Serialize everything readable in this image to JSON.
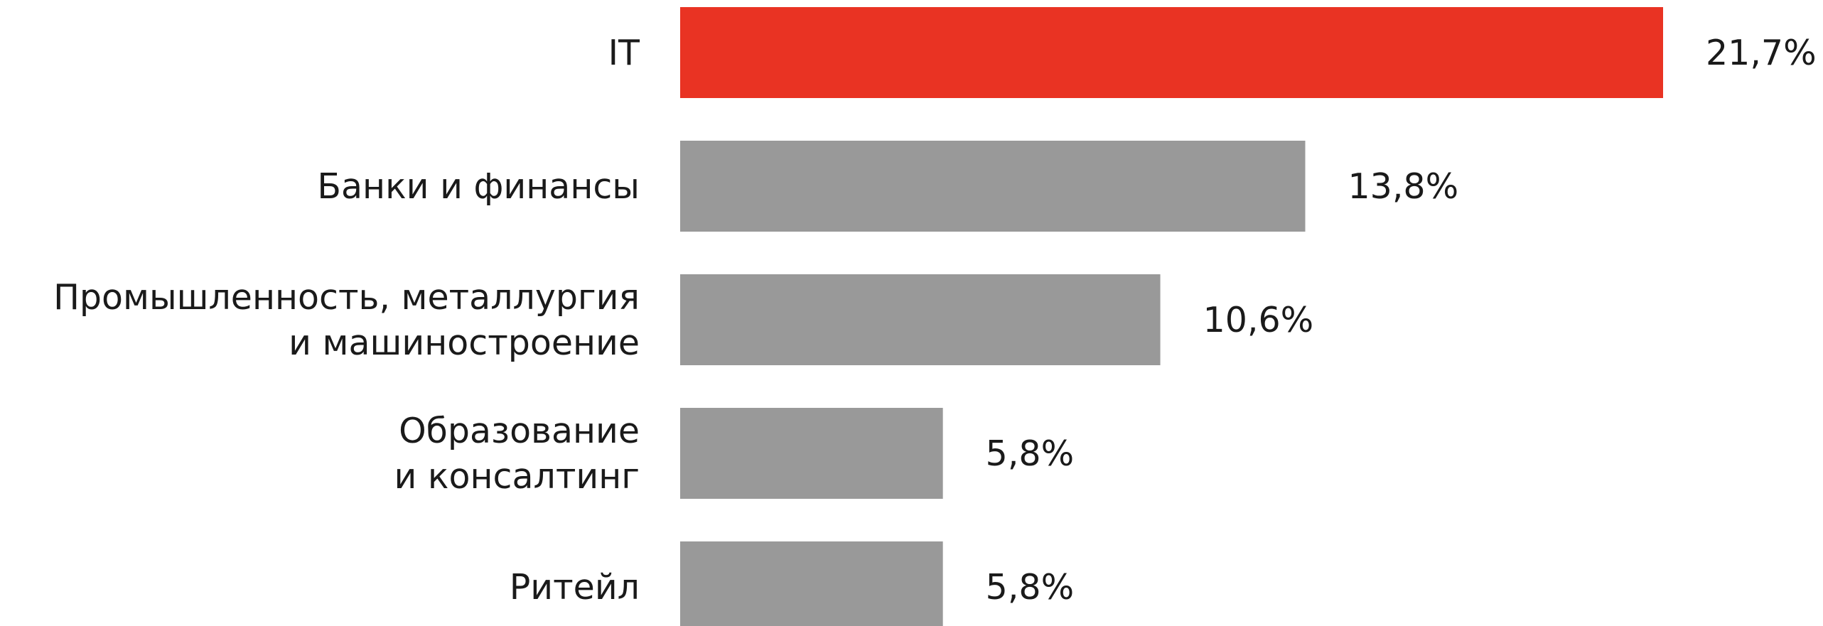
{
  "chart_data": {
    "type": "bar",
    "orientation": "horizontal",
    "categories": [
      [
        "IT"
      ],
      [
        "Банки и финансы"
      ],
      [
        "Промышленность, металлургия",
        "и машиностроение"
      ],
      [
        "Образование",
        "и консалтинг"
      ],
      [
        "Ритейл"
      ]
    ],
    "values": [
      21.7,
      13.8,
      10.6,
      5.8,
      5.8
    ],
    "value_labels": [
      "21,7%",
      "13,8%",
      "10,6%",
      "5,8%",
      "5,8%"
    ],
    "xlim": [
      0,
      21.7
    ],
    "grid": false,
    "legend": "none",
    "title": "",
    "xlabel": "",
    "ylabel": ""
  },
  "colors": {
    "highlight": "#E93323",
    "default": "#999999",
    "text": "#1a1a1a"
  }
}
